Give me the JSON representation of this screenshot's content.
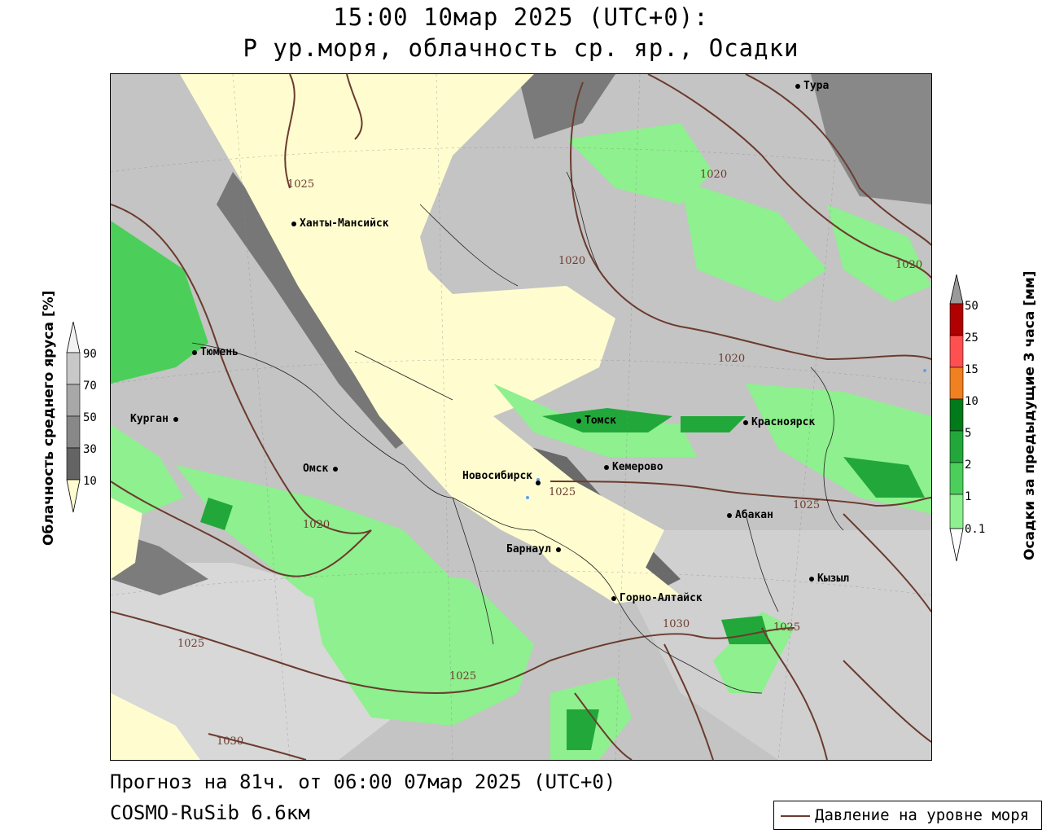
{
  "header": {
    "line1": "15:00 10мар 2025 (UTC+0):",
    "line2": "P ур.моря, облачность ср. яр., Осадки"
  },
  "footer": {
    "forecast": "Прогноз на 81ч. от 06:00 07мар 2025 (UTC+0)",
    "model": "COSMO-RuSib 6.6км"
  },
  "legend": {
    "line_label": "Давление на уровне моря",
    "line_color": "#6b3b2e"
  },
  "cloud_scale": {
    "title": "Облачность среднего яруса [%]",
    "ticks": [
      "90",
      "70",
      "50",
      "30",
      "10"
    ],
    "colors": [
      "#f2f2f2",
      "#c8c8c8",
      "#a8a8a8",
      "#888888",
      "#646464",
      "#fffdd0"
    ]
  },
  "precip_scale": {
    "title": "Осадки за предыдущие 3 часа [мм]",
    "ticks": [
      "50",
      "25",
      "15",
      "10",
      "5",
      "2",
      "1",
      "0.1"
    ],
    "colors": [
      "#9a9a9a",
      "#b00000",
      "#ff5050",
      "#f08020",
      "#007a1a",
      "#22a83a",
      "#4ccf5a",
      "#8ef08e"
    ]
  },
  "cities": [
    {
      "name": "Тура"
    },
    {
      "name": "Ханты-Мансийск"
    },
    {
      "name": "Тюмень"
    },
    {
      "name": "Курган"
    },
    {
      "name": "Омск"
    },
    {
      "name": "Томск"
    },
    {
      "name": "Красноярск"
    },
    {
      "name": "Кемерово"
    },
    {
      "name": "Новосибирск"
    },
    {
      "name": "Абакан"
    },
    {
      "name": "Барнаул"
    },
    {
      "name": "Кызыл"
    },
    {
      "name": "Горно-Алтайск"
    }
  ],
  "isobar_labels": [
    "1025",
    "1020",
    "1020",
    "1020",
    "1020",
    "1025",
    "1025",
    "1020",
    "1030",
    "1025",
    "1025",
    "1025",
    "1030"
  ]
}
